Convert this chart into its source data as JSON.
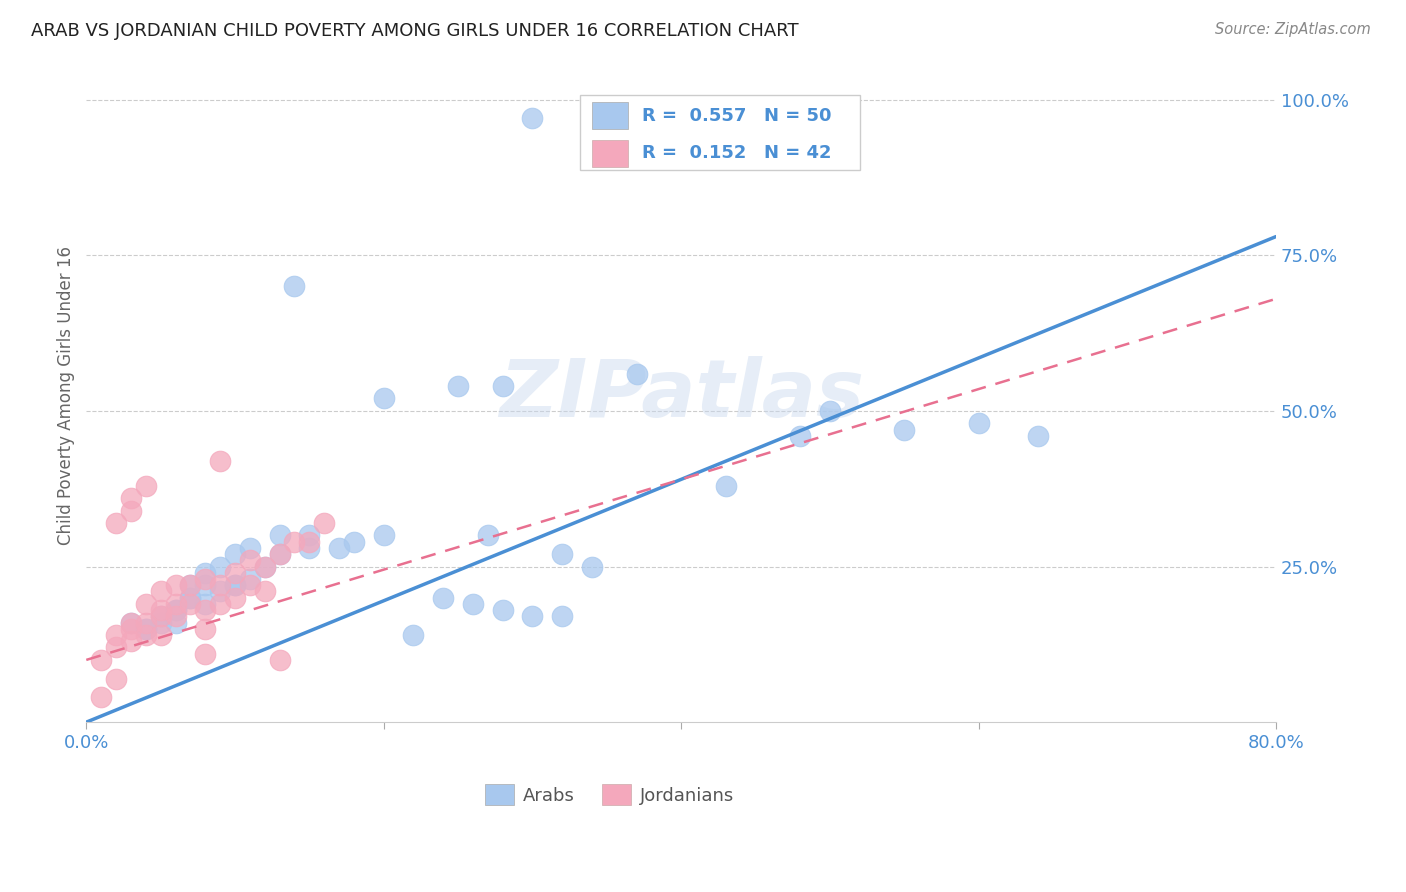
{
  "title": "ARAB VS JORDANIAN CHILD POVERTY AMONG GIRLS UNDER 16 CORRELATION CHART",
  "source": "Source: ZipAtlas.com",
  "ylabel": "Child Poverty Among Girls Under 16",
  "xlim": [
    0.0,
    0.8
  ],
  "ylim": [
    0.0,
    1.05
  ],
  "xticks": [
    0.0,
    0.2,
    0.4,
    0.6,
    0.8
  ],
  "xticklabels": [
    "0.0%",
    "",
    "",
    "",
    "80.0%"
  ],
  "yticks": [
    0.25,
    0.5,
    0.75,
    1.0
  ],
  "yticklabels": [
    "25.0%",
    "50.0%",
    "75.0%",
    "100.0%"
  ],
  "watermark_text": "ZIPatlas",
  "arab_color": "#A8C8EE",
  "jordan_color": "#F4A8BC",
  "arab_line_color": "#4A8FD4",
  "jordan_line_color": "#E87090",
  "legend_arab_label": "Arabs",
  "legend_jordan_label": "Jordanians",
  "R_arab": "0.557",
  "N_arab": "50",
  "R_jordan": "0.152",
  "N_jordan": "42",
  "arab_line_x": [
    0.0,
    0.8
  ],
  "arab_line_y": [
    0.0,
    0.78
  ],
  "jordan_line_x": [
    0.0,
    0.8
  ],
  "jordan_line_y": [
    0.1,
    0.68
  ],
  "arab_scatter_x": [
    0.3,
    0.14,
    0.28,
    0.37,
    0.5,
    0.48,
    0.43,
    0.55,
    0.6,
    0.64,
    0.03,
    0.05,
    0.06,
    0.07,
    0.08,
    0.09,
    0.1,
    0.04,
    0.05,
    0.06,
    0.07,
    0.08,
    0.1,
    0.11,
    0.12,
    0.13,
    0.15,
    0.04,
    0.06,
    0.07,
    0.08,
    0.09,
    0.1,
    0.11,
    0.13,
    0.15,
    0.17,
    0.18,
    0.2,
    0.22,
    0.24,
    0.26,
    0.28,
    0.3,
    0.32,
    0.34,
    0.25,
    0.2,
    0.27,
    0.32
  ],
  "arab_scatter_y": [
    0.97,
    0.7,
    0.54,
    0.56,
    0.5,
    0.46,
    0.38,
    0.47,
    0.48,
    0.46,
    0.16,
    0.17,
    0.18,
    0.2,
    0.19,
    0.21,
    0.22,
    0.15,
    0.16,
    0.18,
    0.2,
    0.22,
    0.22,
    0.23,
    0.25,
    0.27,
    0.28,
    0.15,
    0.16,
    0.22,
    0.24,
    0.25,
    0.27,
    0.28,
    0.3,
    0.3,
    0.28,
    0.29,
    0.3,
    0.14,
    0.2,
    0.19,
    0.18,
    0.17,
    0.27,
    0.25,
    0.54,
    0.52,
    0.3,
    0.17
  ],
  "jordan_scatter_x": [
    0.01,
    0.01,
    0.02,
    0.02,
    0.02,
    0.03,
    0.03,
    0.03,
    0.04,
    0.04,
    0.04,
    0.05,
    0.05,
    0.05,
    0.05,
    0.06,
    0.06,
    0.06,
    0.07,
    0.07,
    0.08,
    0.08,
    0.08,
    0.09,
    0.09,
    0.1,
    0.1,
    0.11,
    0.11,
    0.12,
    0.12,
    0.13,
    0.14,
    0.15,
    0.16,
    0.02,
    0.03,
    0.03,
    0.04,
    0.08,
    0.09,
    0.13
  ],
  "jordan_scatter_y": [
    0.04,
    0.1,
    0.12,
    0.14,
    0.07,
    0.13,
    0.15,
    0.16,
    0.14,
    0.16,
    0.19,
    0.14,
    0.17,
    0.18,
    0.21,
    0.17,
    0.19,
    0.22,
    0.19,
    0.22,
    0.15,
    0.18,
    0.23,
    0.19,
    0.22,
    0.2,
    0.24,
    0.22,
    0.26,
    0.21,
    0.25,
    0.27,
    0.29,
    0.29,
    0.32,
    0.32,
    0.34,
    0.36,
    0.38,
    0.11,
    0.42,
    0.1
  ]
}
